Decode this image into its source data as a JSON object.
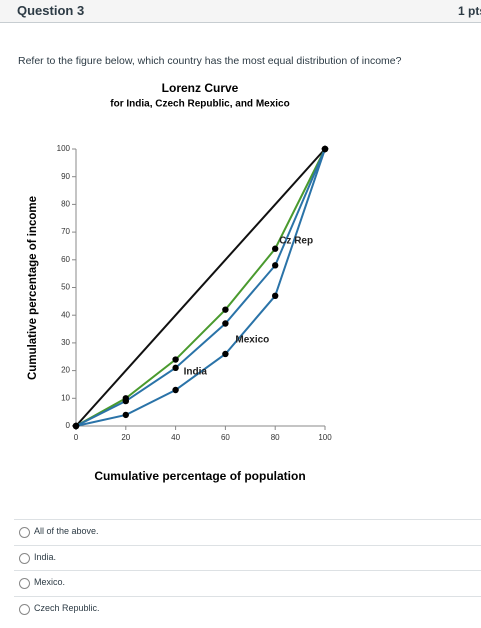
{
  "header": {
    "title": "Question 3",
    "points": "1 pts"
  },
  "question": "Refer to the figure below, which country has the most equal distribution of income?",
  "chart_data": {
    "type": "line",
    "title": "Lorenz Curve",
    "subtitle": "for India, Czech Republic, and Mexico",
    "x_label": "Cumulative percentage of population",
    "y_label": "Cumulative percentage of income",
    "x": [
      0,
      20,
      40,
      60,
      80,
      100
    ],
    "xlim": [
      0,
      100
    ],
    "xticks": [
      0,
      20,
      40,
      60,
      80,
      100
    ],
    "ylim": [
      0,
      100
    ],
    "yticks": [
      0,
      10,
      20,
      30,
      40,
      50,
      60,
      70,
      80,
      90,
      100
    ],
    "series": [
      {
        "color": "#111111",
        "markers": false,
        "values": [
          0,
          20,
          40,
          60,
          80,
          100
        ]
      },
      {
        "name": "Cz Rep",
        "color": "#4a9a2e",
        "markers": true,
        "values": [
          0,
          10,
          24,
          42,
          64,
          100
        ]
      },
      {
        "name": "India",
        "color": "#2a73a8",
        "markers": true,
        "values": [
          0,
          9,
          21,
          37,
          58,
          100
        ]
      },
      {
        "name": "Mexico",
        "color": "#2a73a8",
        "markers": true,
        "values": [
          0,
          4,
          13,
          26,
          47,
          100
        ]
      }
    ]
  },
  "options": [
    "All of the above.",
    "India.",
    "Mexico.",
    "Czech Republic."
  ]
}
